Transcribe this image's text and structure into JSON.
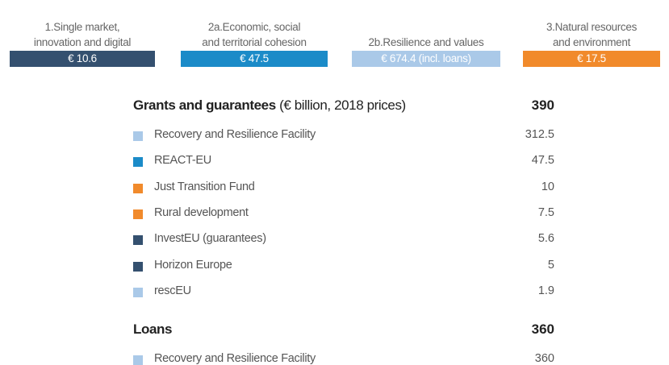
{
  "headings": [
    {
      "lines": [
        "1.Single market,",
        "innovation and digital"
      ],
      "amount": "€ 10.6",
      "color": "#34506f"
    },
    {
      "lines": [
        "2a.Economic, social",
        "and territorial cohesion"
      ],
      "amount": "€ 47.5",
      "color": "#1b8bc8"
    },
    {
      "lines": [
        "2b.Resilience and values"
      ],
      "amount": "€ 674.4 (incl. loans)",
      "color": "#aac9e8"
    },
    {
      "lines": [
        "3.Natural resources",
        "and environment"
      ],
      "amount": "€ 17.5",
      "color": "#f18a2b"
    }
  ],
  "sections": [
    {
      "title": "Grants and guarantees",
      "note": "(€ billion, 2018 prices)",
      "total": 390,
      "items": [
        {
          "name": "Recovery and Resilience Facility",
          "value": 312.5,
          "color": "#aac9e8"
        },
        {
          "name": "REACT-EU",
          "value": 47.5,
          "color": "#1b8bc8"
        },
        {
          "name": "Just Transition Fund",
          "value": 10,
          "color": "#f18a2b"
        },
        {
          "name": "Rural development",
          "value": 7.5,
          "color": "#f18a2b"
        },
        {
          "name": "InvestEU (guarantees)",
          "value": 5.6,
          "color": "#34506f"
        },
        {
          "name": "Horizon Europe",
          "value": 5,
          "color": "#34506f"
        },
        {
          "name": "rescEU",
          "value": 1.9,
          "color": "#aac9e8"
        }
      ]
    },
    {
      "title": "Loans",
      "total": 360,
      "items": [
        {
          "name": "Recovery and Resilience Facility",
          "value": 360,
          "color": "#aac9e8"
        }
      ]
    }
  ]
}
